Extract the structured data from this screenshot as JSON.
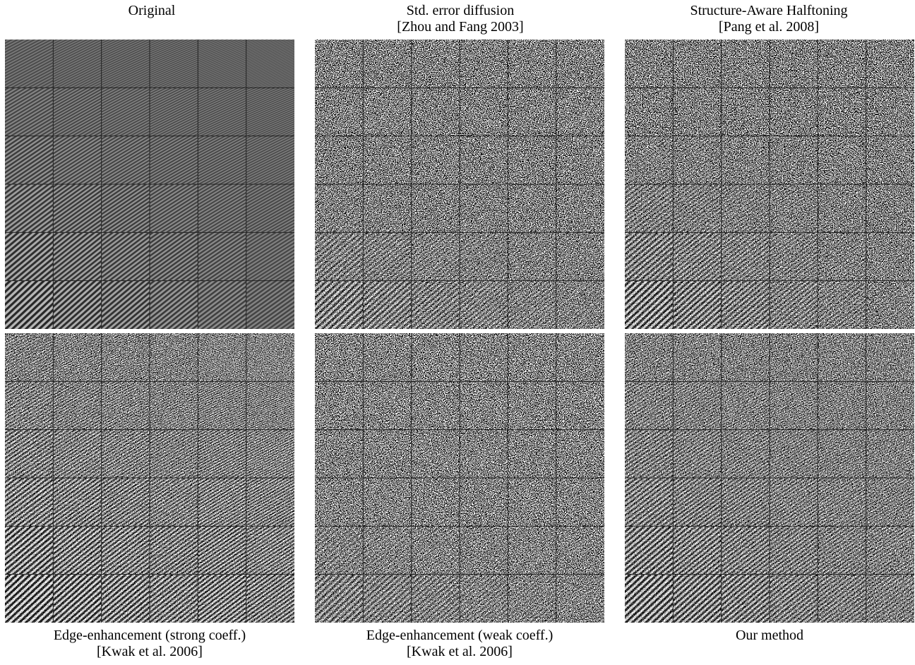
{
  "figure": {
    "panels": [
      {
        "id": "original",
        "caption": [
          "Original"
        ],
        "caption_pos": "top",
        "style": "original"
      },
      {
        "id": "std-error-diffusion",
        "caption": [
          "Std. error diffusion",
          "[Zhou and Fang 2003]"
        ],
        "caption_pos": "top",
        "style": "halftone"
      },
      {
        "id": "structure-aware",
        "caption": [
          "Structure-Aware Halftoning",
          "[Pang et al. 2008]"
        ],
        "caption_pos": "top",
        "style": "structure"
      },
      {
        "id": "edge-strong",
        "caption": [
          "Edge-enhancement (strong coeff.)",
          "[Kwak et al. 2006]"
        ],
        "caption_pos": "bottom",
        "style": "edge-strong"
      },
      {
        "id": "edge-weak",
        "caption": [
          "Edge-enhancement (weak coeff.)",
          "[Kwak et al. 2006]"
        ],
        "caption_pos": "bottom",
        "style": "edge-weak"
      },
      {
        "id": "our-method",
        "caption": [
          "Our method"
        ],
        "caption_pos": "bottom",
        "style": "ours"
      }
    ],
    "grid": {
      "rows": 6,
      "cols": 6
    },
    "colors": {
      "mid_gray": "#5a5a5a",
      "grid_line": "#222222",
      "white": "#ffffff",
      "black": "#000000"
    }
  }
}
